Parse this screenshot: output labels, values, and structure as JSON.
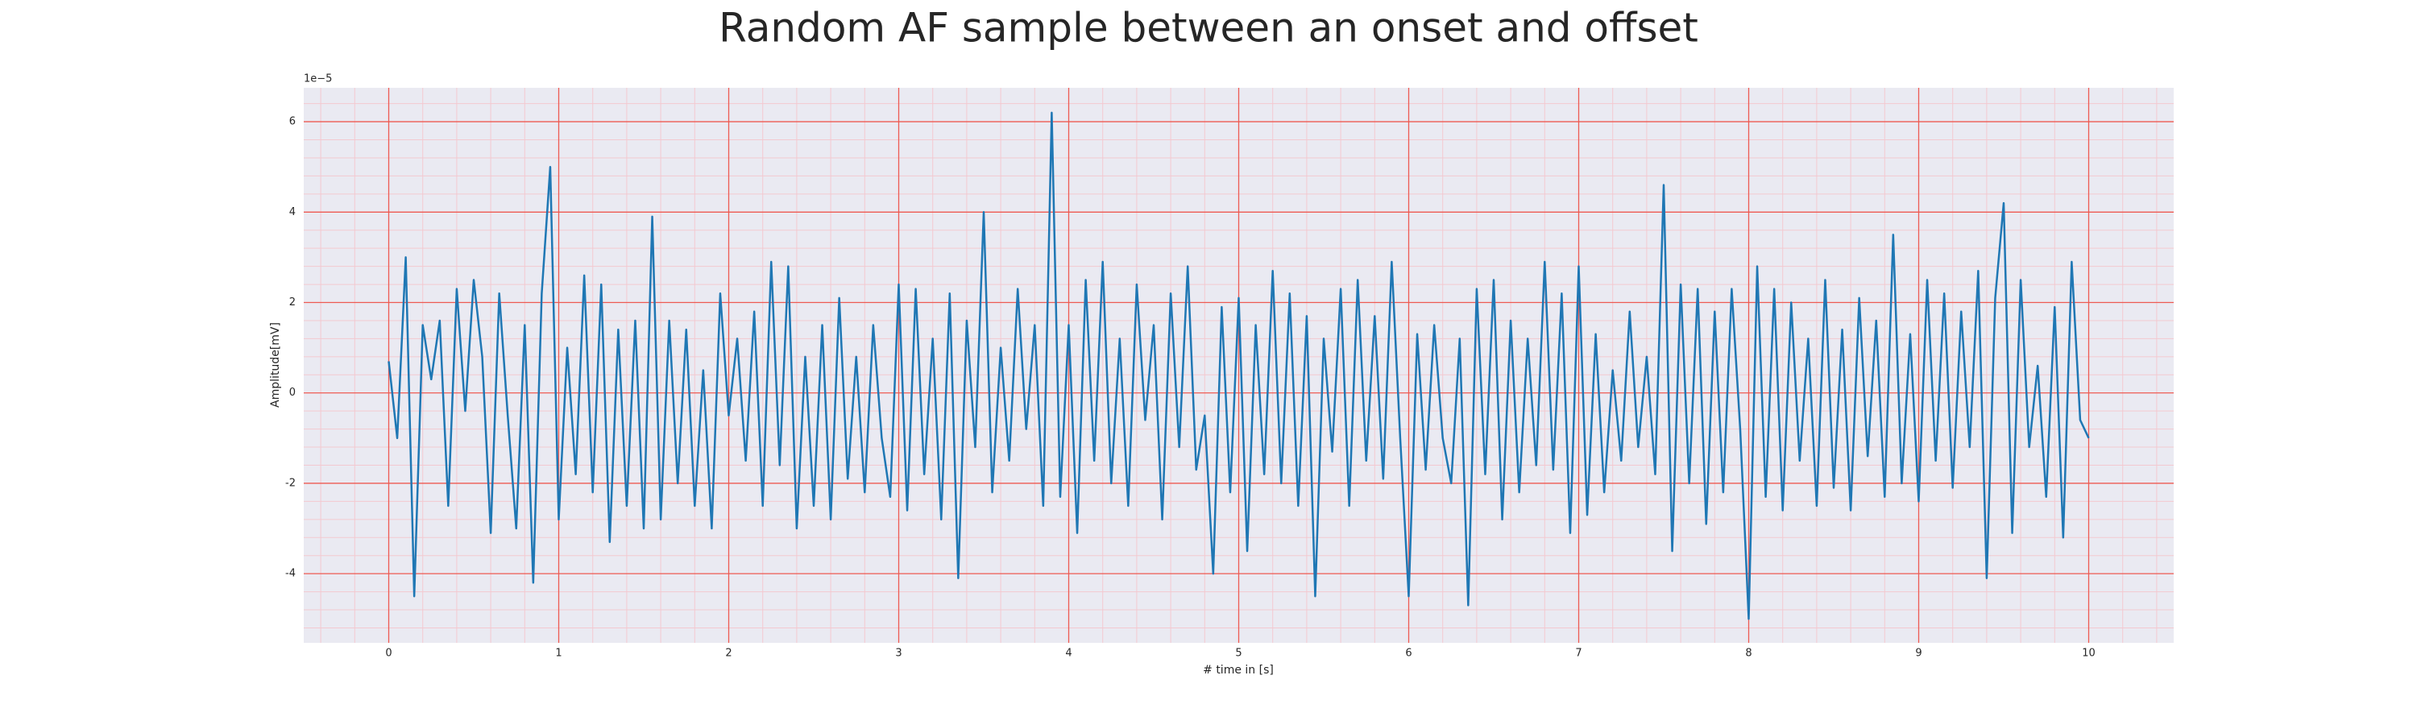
{
  "chart_data": {
    "type": "line",
    "title": "Random AF sample between an onset and offset",
    "xlabel": "# time in [s]",
    "ylabel": "Amplitude[mV]",
    "y_offset_text": "1e−5",
    "color": "#1f77b4",
    "grid": true,
    "grid_color": "#ee5a52",
    "minor_grid_color": "#f3c9d0",
    "background": "#eaeaf2",
    "xlim": [
      -0.5,
      10.5
    ],
    "ylim": [
      -5.53,
      6.75
    ],
    "xticks": [
      0,
      1,
      2,
      3,
      4,
      5,
      6,
      7,
      8,
      9,
      10
    ],
    "yticks": [
      -4,
      -2,
      0,
      2,
      4,
      6
    ],
    "minor_xticks": [
      -0.4,
      -0.2,
      0.2,
      0.4,
      0.6,
      0.8,
      1.2,
      1.4,
      1.6,
      1.8,
      2.2,
      2.4,
      2.6,
      2.8,
      3.2,
      3.4,
      3.6,
      3.8,
      4.2,
      4.4,
      4.6,
      4.8,
      5.2,
      5.4,
      5.6,
      5.8,
      6.2,
      6.4,
      6.6,
      6.8,
      7.2,
      7.4,
      7.6,
      7.8,
      8.2,
      8.4,
      8.6,
      8.8,
      9.2,
      9.4,
      9.6,
      9.8,
      10.2,
      10.4
    ],
    "minor_yticks": [
      -5.2,
      -4.8,
      -4.4,
      -3.6,
      -3.2,
      -2.8,
      -2.4,
      -1.6,
      -1.2,
      -0.8,
      -0.4,
      0.4,
      0.8,
      1.2,
      1.6,
      2.4,
      2.8,
      3.2,
      3.6,
      4.4,
      4.8,
      5.2,
      5.6,
      6.4
    ],
    "x": [
      0,
      0.05,
      0.1,
      0.15,
      0.2,
      0.25,
      0.3,
      0.35,
      0.4,
      0.45,
      0.5,
      0.55,
      0.6,
      0.65,
      0.7,
      0.75,
      0.8,
      0.85,
      0.9,
      0.95,
      1,
      1.05,
      1.1,
      1.15,
      1.2,
      1.25,
      1.3,
      1.35,
      1.4,
      1.45,
      1.5,
      1.55,
      1.6,
      1.65,
      1.7,
      1.75,
      1.8,
      1.85,
      1.9,
      1.95,
      2,
      2.05,
      2.1,
      2.15,
      2.2,
      2.25,
      2.3,
      2.35,
      2.4,
      2.45,
      2.5,
      2.55,
      2.6,
      2.65,
      2.7,
      2.75,
      2.8,
      2.85,
      2.9,
      2.95,
      3,
      3.05,
      3.1,
      3.15,
      3.2,
      3.25,
      3.3,
      3.35,
      3.4,
      3.45,
      3.5,
      3.55,
      3.6,
      3.65,
      3.7,
      3.75,
      3.8,
      3.85,
      3.9,
      3.95,
      4,
      4.05,
      4.1,
      4.15,
      4.2,
      4.25,
      4.3,
      4.35,
      4.4,
      4.45,
      4.5,
      4.55,
      4.6,
      4.65,
      4.7,
      4.75,
      4.8,
      4.85,
      4.9,
      4.95,
      5,
      5.05,
      5.1,
      5.15,
      5.2,
      5.25,
      5.3,
      5.35,
      5.4,
      5.45,
      5.5,
      5.55,
      5.6,
      5.65,
      5.7,
      5.75,
      5.8,
      5.85,
      5.9,
      5.95,
      6,
      6.05,
      6.1,
      6.15,
      6.2,
      6.25,
      6.3,
      6.35,
      6.4,
      6.45,
      6.5,
      6.55,
      6.6,
      6.65,
      6.7,
      6.75,
      6.8,
      6.85,
      6.9,
      6.95,
      7,
      7.05,
      7.1,
      7.15,
      7.2,
      7.25,
      7.3,
      7.35,
      7.4,
      7.45,
      7.5,
      7.55,
      7.6,
      7.65,
      7.7,
      7.75,
      7.8,
      7.85,
      7.9,
      7.95,
      8,
      8.05,
      8.1,
      8.15,
      8.2,
      8.25,
      8.3,
      8.35,
      8.4,
      8.45,
      8.5,
      8.55,
      8.6,
      8.65,
      8.7,
      8.75,
      8.8,
      8.85,
      8.9,
      8.95,
      9,
      9.05,
      9.1,
      9.15,
      9.2,
      9.25,
      9.3,
      9.35,
      9.4,
      9.45,
      9.5,
      9.55,
      9.6,
      9.65,
      9.7,
      9.75,
      9.8,
      9.85,
      9.9,
      9.95,
      10
    ],
    "values": [
      0.7,
      -1,
      3,
      -4.5,
      1.5,
      0.3,
      1.6,
      -2.5,
      2.3,
      -0.4,
      2.5,
      0.8,
      -3.1,
      2.2,
      -0.5,
      -3,
      1.5,
      -4.2,
      2.2,
      5,
      -2.8,
      1,
      -1.8,
      2.6,
      -2.2,
      2.4,
      -3.3,
      1.4,
      -2.5,
      1.6,
      -3,
      3.9,
      -2.8,
      1.6,
      -2,
      1.4,
      -2.5,
      0.5,
      -3,
      2.2,
      -0.5,
      1.2,
      -1.5,
      1.8,
      -2.5,
      2.9,
      -1.6,
      2.8,
      -3,
      0.8,
      -2.5,
      1.5,
      -2.8,
      2.1,
      -1.9,
      0.8,
      -2.2,
      1.5,
      -1,
      -2.3,
      2.4,
      -2.6,
      2.3,
      -1.8,
      1.2,
      -2.8,
      2.2,
      -4.1,
      1.6,
      -1.2,
      4,
      -2.2,
      1,
      -1.5,
      2.3,
      -0.8,
      1.5,
      -2.5,
      6.2,
      -2.3,
      1.5,
      -3.1,
      2.5,
      -1.5,
      2.9,
      -2,
      1.2,
      -2.5,
      2.4,
      -0.6,
      1.5,
      -2.8,
      2.2,
      -1.2,
      2.8,
      -1.7,
      -0.5,
      -4,
      1.9,
      -2.2,
      2.1,
      -3.5,
      1.5,
      -1.8,
      2.7,
      -2,
      2.2,
      -2.5,
      1.7,
      -4.5,
      1.2,
      -1.3,
      2.3,
      -2.5,
      2.5,
      -1.5,
      1.7,
      -1.9,
      2.9,
      -1,
      -4.5,
      1.3,
      -1.7,
      1.5,
      -1,
      -2,
      1.2,
      -4.7,
      2.3,
      -1.8,
      2.5,
      -2.8,
      1.6,
      -2.2,
      1.2,
      -1.6,
      2.9,
      -1.7,
      2.2,
      -3.1,
      2.8,
      -2.7,
      1.3,
      -2.2,
      0.5,
      -1.5,
      1.8,
      -1.2,
      0.8,
      -1.8,
      4.6,
      -3.5,
      2.4,
      -2,
      2.3,
      -2.9,
      1.8,
      -2.2,
      2.3,
      -0.8,
      -5,
      2.8,
      -2.3,
      2.3,
      -2.6,
      2,
      -1.5,
      1.2,
      -2.5,
      2.5,
      -2.1,
      1.4,
      -2.6,
      2.1,
      -1.4,
      1.6,
      -2.3,
      3.5,
      -2,
      1.3,
      -2.4,
      2.5,
      -1.5,
      2.2,
      -2.1,
      1.8,
      -1.2,
      2.7,
      -4.1,
      2.1,
      4.2,
      -3.1,
      2.5,
      -1.2,
      0.6,
      -2.3,
      1.9,
      -3.2,
      2.9,
      -0.6,
      -1
    ]
  }
}
